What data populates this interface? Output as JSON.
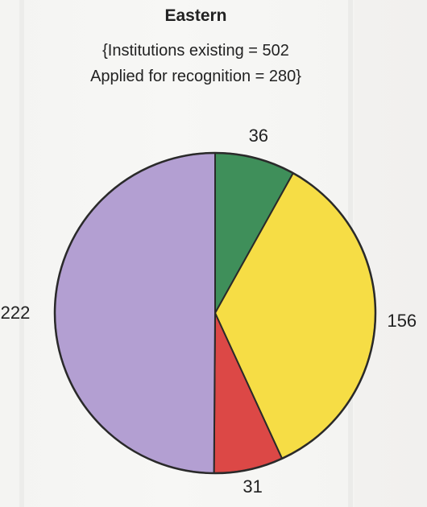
{
  "chart_data": {
    "type": "pie",
    "title": "Eastern",
    "subtitle_lines": [
      "{Institutions existing = 502",
      "Applied for recognition = 280}"
    ],
    "slices": [
      {
        "label": "36",
        "value": 36,
        "color": "#3f8f5a"
      },
      {
        "label": "156",
        "value": 156,
        "color": "#f6dd45"
      },
      {
        "label": "31",
        "value": 31,
        "color": "#dc4846"
      },
      {
        "label": "222",
        "value": 222,
        "color": "#b39fd2"
      }
    ],
    "start_angle_deg": 0,
    "direction": "clockwise",
    "legend": "none"
  }
}
